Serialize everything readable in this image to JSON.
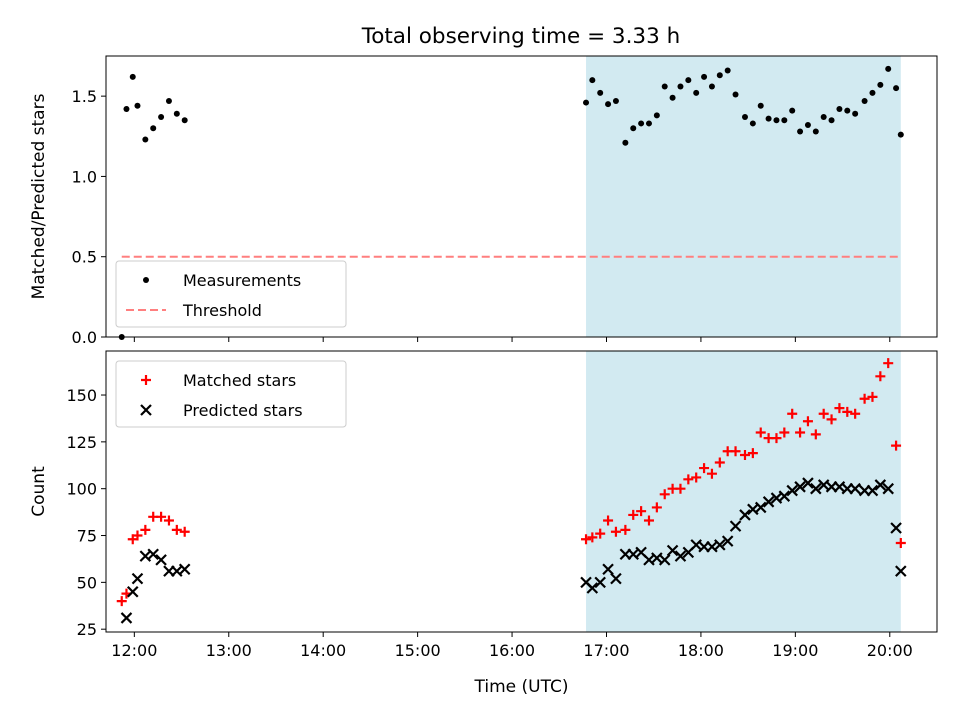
{
  "figure": {
    "title": "Total observing time = 3.33 h"
  },
  "colors": {
    "shade": "#add8e6",
    "measurement": "#000000",
    "threshold": "#ff7f7f",
    "matched": "#ff0000",
    "predicted": "#000000"
  },
  "chart_data": [
    {
      "type": "scatter",
      "ylabel": "Matched/Predicted stars",
      "xlim": [
        "11:42",
        "20:30"
      ],
      "ylim": [
        0,
        1.75
      ],
      "yticks": [
        0.0,
        0.5,
        1.0,
        1.5
      ],
      "ytick_labels": [
        "0.0",
        "0.5",
        "1.0",
        "1.5"
      ],
      "shaded_span": [
        "16:47",
        "20:07"
      ],
      "legend_position": "lower-left",
      "series": [
        {
          "name": "Measurements",
          "marker": "dot",
          "points": [
            [
              "11:52",
              0.0
            ],
            [
              "11:55",
              1.42
            ],
            [
              "11:59",
              1.62
            ],
            [
              "12:02",
              1.44
            ],
            [
              "12:07",
              1.23
            ],
            [
              "12:12",
              1.3
            ],
            [
              "12:17",
              1.37
            ],
            [
              "12:22",
              1.47
            ],
            [
              "12:27",
              1.39
            ],
            [
              "12:32",
              1.35
            ],
            [
              "16:47",
              1.46
            ],
            [
              "16:51",
              1.6
            ],
            [
              "16:56",
              1.52
            ],
            [
              "17:01",
              1.45
            ],
            [
              "17:06",
              1.47
            ],
            [
              "17:12",
              1.21
            ],
            [
              "17:17",
              1.3
            ],
            [
              "17:22",
              1.33
            ],
            [
              "17:27",
              1.33
            ],
            [
              "17:32",
              1.38
            ],
            [
              "17:37",
              1.56
            ],
            [
              "17:42",
              1.49
            ],
            [
              "17:47",
              1.56
            ],
            [
              "17:52",
              1.6
            ],
            [
              "17:57",
              1.52
            ],
            [
              "18:02",
              1.62
            ],
            [
              "18:07",
              1.56
            ],
            [
              "18:12",
              1.63
            ],
            [
              "18:17",
              1.66
            ],
            [
              "18:22",
              1.51
            ],
            [
              "18:28",
              1.37
            ],
            [
              "18:33",
              1.33
            ],
            [
              "18:38",
              1.44
            ],
            [
              "18:43",
              1.36
            ],
            [
              "18:48",
              1.35
            ],
            [
              "18:53",
              1.35
            ],
            [
              "18:58",
              1.41
            ],
            [
              "19:03",
              1.28
            ],
            [
              "19:08",
              1.32
            ],
            [
              "19:13",
              1.28
            ],
            [
              "19:18",
              1.37
            ],
            [
              "19:23",
              1.35
            ],
            [
              "19:28",
              1.42
            ],
            [
              "19:33",
              1.41
            ],
            [
              "19:38",
              1.39
            ],
            [
              "19:44",
              1.47
            ],
            [
              "19:49",
              1.52
            ],
            [
              "19:54",
              1.57
            ],
            [
              "19:59",
              1.67
            ],
            [
              "20:04",
              1.55
            ],
            [
              "20:07",
              1.26
            ]
          ]
        },
        {
          "name": "Threshold",
          "style": "dashed",
          "points": [
            [
              "11:52",
              0.5
            ],
            [
              "20:07",
              0.5
            ]
          ]
        }
      ]
    },
    {
      "type": "scatter",
      "ylabel": "Count",
      "xlabel": "Time (UTC)",
      "xlim": [
        "11:42",
        "20:30"
      ],
      "ylim": [
        23.5,
        173.5
      ],
      "xticks": [
        "12:00",
        "13:00",
        "14:00",
        "15:00",
        "16:00",
        "17:00",
        "18:00",
        "19:00",
        "20:00"
      ],
      "yticks": [
        25,
        50,
        75,
        100,
        125,
        150
      ],
      "shaded_span": [
        "16:47",
        "20:07"
      ],
      "legend_position": "upper-left",
      "series": [
        {
          "name": "Matched stars",
          "marker": "plus",
          "points": [
            [
              "11:52",
              40
            ],
            [
              "11:55",
              44
            ],
            [
              "11:59",
              73
            ],
            [
              "12:02",
              75
            ],
            [
              "12:07",
              78
            ],
            [
              "12:12",
              85
            ],
            [
              "12:17",
              85
            ],
            [
              "12:22",
              83
            ],
            [
              "12:27",
              78
            ],
            [
              "12:32",
              77
            ],
            [
              "16:47",
              73
            ],
            [
              "16:51",
              74
            ],
            [
              "16:56",
              76
            ],
            [
              "17:01",
              83
            ],
            [
              "17:06",
              77
            ],
            [
              "17:12",
              78
            ],
            [
              "17:17",
              86
            ],
            [
              "17:22",
              88
            ],
            [
              "17:27",
              83
            ],
            [
              "17:32",
              90
            ],
            [
              "17:37",
              97
            ],
            [
              "17:42",
              100
            ],
            [
              "17:47",
              100
            ],
            [
              "17:52",
              105
            ],
            [
              "17:57",
              106
            ],
            [
              "18:02",
              111
            ],
            [
              "18:07",
              108
            ],
            [
              "18:12",
              114
            ],
            [
              "18:17",
              120
            ],
            [
              "18:22",
              120
            ],
            [
              "18:28",
              118
            ],
            [
              "18:33",
              119
            ],
            [
              "18:38",
              130
            ],
            [
              "18:43",
              127
            ],
            [
              "18:48",
              127
            ],
            [
              "18:53",
              130
            ],
            [
              "18:58",
              140
            ],
            [
              "19:03",
              130
            ],
            [
              "19:08",
              136
            ],
            [
              "19:13",
              129
            ],
            [
              "19:18",
              140
            ],
            [
              "19:23",
              137
            ],
            [
              "19:28",
              143
            ],
            [
              "19:33",
              141
            ],
            [
              "19:38",
              140
            ],
            [
              "19:44",
              148
            ],
            [
              "19:49",
              149
            ],
            [
              "19:54",
              160
            ],
            [
              "19:59",
              167
            ],
            [
              "20:04",
              123
            ],
            [
              "20:07",
              71
            ]
          ]
        },
        {
          "name": "Predicted stars",
          "marker": "x",
          "points": [
            [
              "11:55",
              31
            ],
            [
              "11:59",
              45
            ],
            [
              "12:02",
              52
            ],
            [
              "12:07",
              64
            ],
            [
              "12:12",
              65
            ],
            [
              "12:17",
              62
            ],
            [
              "12:22",
              56
            ],
            [
              "12:27",
              56
            ],
            [
              "12:32",
              57
            ],
            [
              "16:47",
              50
            ],
            [
              "16:51",
              47
            ],
            [
              "16:56",
              50
            ],
            [
              "17:01",
              57
            ],
            [
              "17:06",
              52
            ],
            [
              "17:12",
              65
            ],
            [
              "17:17",
              65
            ],
            [
              "17:22",
              66
            ],
            [
              "17:27",
              62
            ],
            [
              "17:32",
              63
            ],
            [
              "17:37",
              62
            ],
            [
              "17:42",
              67
            ],
            [
              "17:47",
              64
            ],
            [
              "17:52",
              66
            ],
            [
              "17:57",
              70
            ],
            [
              "18:02",
              69
            ],
            [
              "18:07",
              69
            ],
            [
              "18:12",
              70
            ],
            [
              "18:17",
              72
            ],
            [
              "18:22",
              80
            ],
            [
              "18:28",
              86
            ],
            [
              "18:33",
              89
            ],
            [
              "18:38",
              90
            ],
            [
              "18:43",
              93
            ],
            [
              "18:48",
              95
            ],
            [
              "18:53",
              96
            ],
            [
              "18:58",
              99
            ],
            [
              "19:03",
              101
            ],
            [
              "19:08",
              103
            ],
            [
              "19:13",
              100
            ],
            [
              "19:18",
              102
            ],
            [
              "19:23",
              101
            ],
            [
              "19:28",
              101
            ],
            [
              "19:33",
              100
            ],
            [
              "19:38",
              100
            ],
            [
              "19:44",
              99
            ],
            [
              "19:49",
              99
            ],
            [
              "19:54",
              102
            ],
            [
              "19:59",
              100
            ],
            [
              "20:04",
              79
            ],
            [
              "20:07",
              56
            ]
          ]
        }
      ]
    }
  ]
}
